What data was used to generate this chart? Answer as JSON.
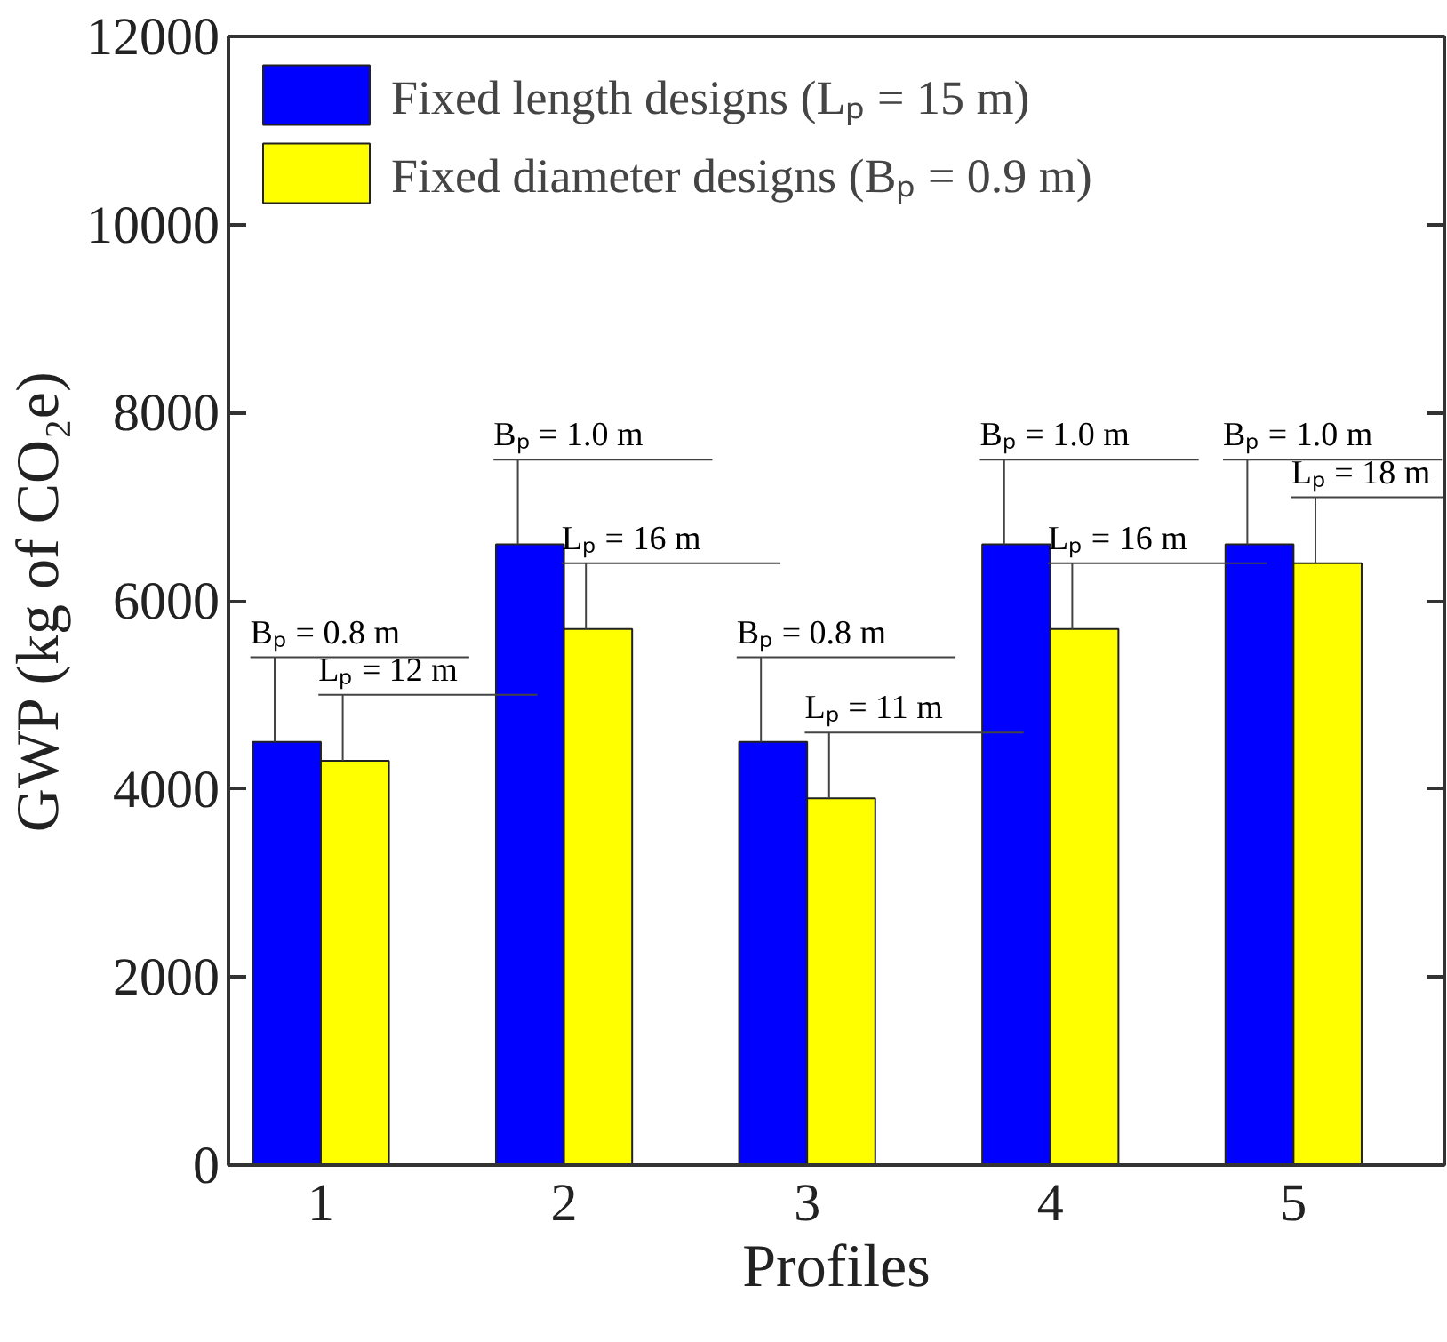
{
  "chart_data": {
    "type": "bar",
    "xlabel": "Profiles",
    "ylabel": "GWP (kg of CO₂e)",
    "categories": [
      "1",
      "2",
      "3",
      "4",
      "5"
    ],
    "series": [
      {
        "name": "Fixed length designs (Lₚ = 15 m)",
        "color": "#0000ff",
        "values": [
          4500,
          6600,
          4500,
          6600,
          6600
        ]
      },
      {
        "name": "Fixed diameter designs (Bₚ = 0.9 m)",
        "color": "#ffff00",
        "values": [
          4300,
          5700,
          3900,
          5700,
          6400
        ]
      }
    ],
    "ylim": [
      0,
      12000
    ],
    "yticks": [
      0,
      2000,
      4000,
      6000,
      8000,
      10000,
      12000
    ],
    "grid": false,
    "legend": "top left",
    "annotations": [
      {
        "text": "Bₚ = 0.8 m",
        "x": "1",
        "y": 4500
      },
      {
        "text": "Lₚ = 12 m",
        "x": "1",
        "y": 4300
      },
      {
        "text": "Bₚ = 1.0 m",
        "x": "2",
        "y": 6600
      },
      {
        "text": "Lₚ = 16 m",
        "x": "2",
        "y": 5700
      },
      {
        "text": "Bₚ = 0.8 m",
        "x": "3",
        "y": 4500
      },
      {
        "text": "Lₚ = 11 m",
        "x": "3",
        "y": 3900
      },
      {
        "text": "Bₚ = 1.0 m",
        "x": "4",
        "y": 6600
      },
      {
        "text": "Lₚ = 16 m",
        "x": "4",
        "y": 5700
      },
      {
        "text": "Bₚ = 1.0 m",
        "x": "5",
        "y": 6600
      },
      {
        "text": "Lₚ = 18 m",
        "x": "5",
        "y": 6400
      }
    ]
  }
}
